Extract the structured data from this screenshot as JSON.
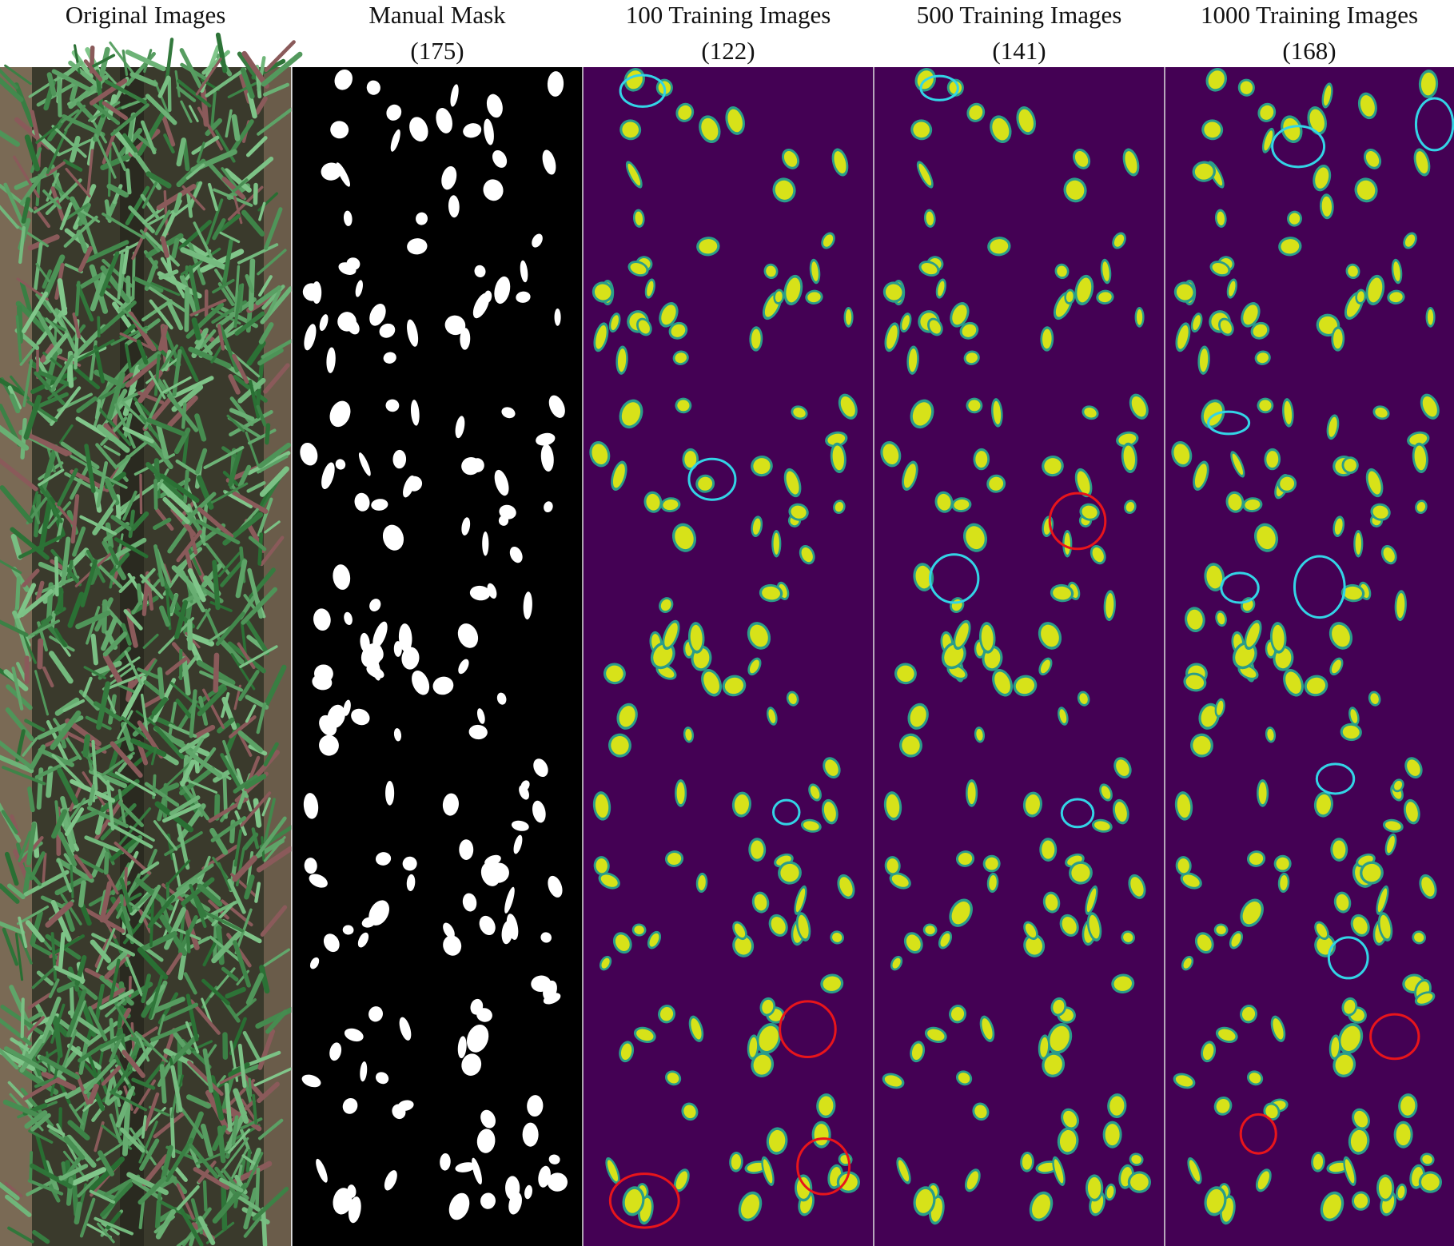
{
  "panels": [
    {
      "title": "Original Images"
    },
    {
      "title": "Manual Mask",
      "count": "(175)"
    },
    {
      "title": "100 Training Images",
      "count": "(122)"
    },
    {
      "title": "500 Training Images",
      "count": "(141)"
    },
    {
      "title": "1000 Training Images",
      "count": "(168)"
    }
  ]
}
